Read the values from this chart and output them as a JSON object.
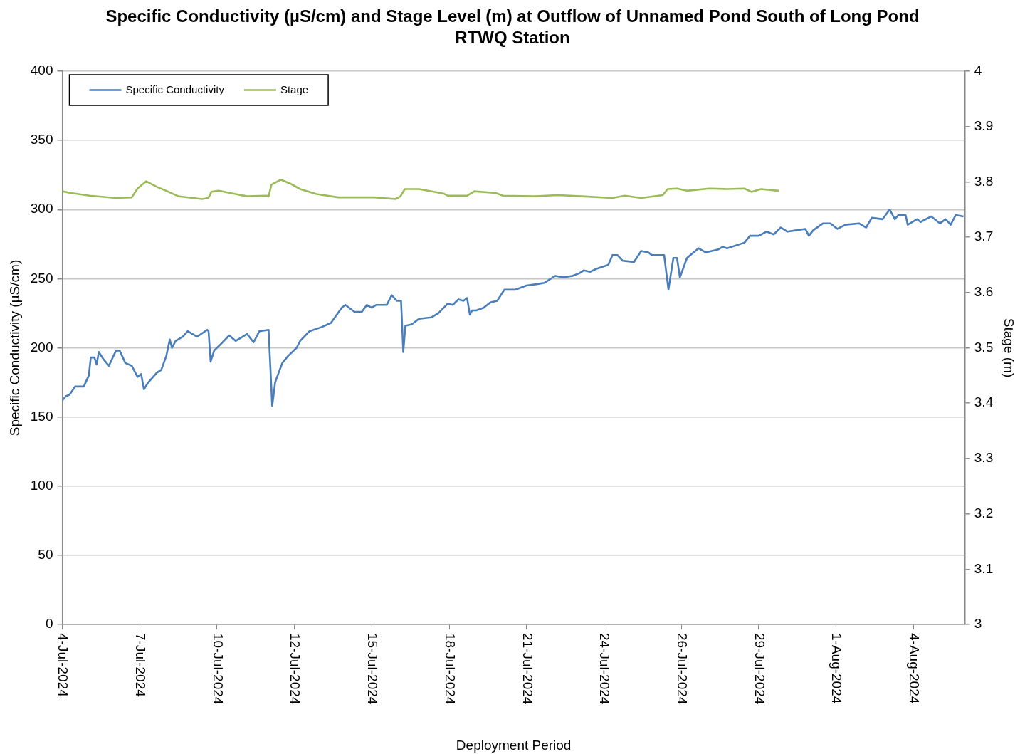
{
  "chart_data": {
    "type": "line",
    "title": "Specific Conductivity (µS/cm) and Stage Level (m) at Outflow of Unnamed Pond South of Long Pond RTWQ Station",
    "xlabel": "Deployment Period",
    "ylabel": "Specific Conductivity (µS/cm)",
    "y2label": "Stage (m)",
    "xlim": [
      "2024-07-04T16:30",
      "2024-08-05T21:18"
    ],
    "xticks": [
      {
        "value": "2024-07-04T16:30",
        "label": "4-Jul-2024"
      },
      {
        "value": "2024-07-07T10:44",
        "label": "7-Jul-2024"
      },
      {
        "value": "2024-07-10T04:59",
        "label": "10-Jul-2024"
      },
      {
        "value": "2024-07-12T23:13",
        "label": "12-Jul-2024"
      },
      {
        "value": "2024-07-15T17:28",
        "label": "15-Jul-2024"
      },
      {
        "value": "2024-07-18T11:42",
        "label": "18-Jul-2024"
      },
      {
        "value": "2024-07-21T05:56",
        "label": "21-Jul-2024"
      },
      {
        "value": "2024-07-24T00:11",
        "label": "24-Jul-2024"
      },
      {
        "value": "2024-07-26T18:25",
        "label": "26-Jul-2024"
      },
      {
        "value": "2024-07-29T12:40",
        "label": "29-Jul-2024"
      },
      {
        "value": "2024-08-01T06:54",
        "label": "1-Aug-2024"
      },
      {
        "value": "2024-08-04T01:08",
        "label": "4-Aug-2024"
      }
    ],
    "ylim": [
      0,
      400
    ],
    "yticks": [
      0,
      50,
      100,
      150,
      200,
      250,
      300,
      350,
      400
    ],
    "y2lim": [
      3,
      4
    ],
    "y2ticks": [
      3,
      3.1,
      3.2,
      3.3,
      3.4,
      3.5,
      3.6,
      3.7,
      3.8,
      3.9,
      4
    ],
    "grid": "y",
    "legend": "top left",
    "marker": "none",
    "line_style": "solid",
    "series": [
      {
        "name": "Specific Conductivity",
        "color": "#4a7ebb",
        "x": [
          "2024-07-04T16:30",
          "2024-07-04T19:36",
          "2024-07-04T22:36",
          "2024-07-05T03:30",
          "2024-07-05T10:54",
          "2024-07-05T15:12",
          "2024-07-05T16:54",
          "2024-07-05T20:00",
          "2024-07-05T21:54",
          "2024-07-05T23:48",
          "2024-07-06T03:30",
          "2024-07-06T08:24",
          "2024-07-06T14:30",
          "2024-07-06T17:36",
          "2024-07-06T22:30",
          "2024-07-07T04:00",
          "2024-07-07T08:54",
          "2024-07-07T12:00",
          "2024-07-07T14:24",
          "2024-07-07T18:06",
          "2024-07-08T01:30",
          "2024-07-08T05:12",
          "2024-07-08T09:30",
          "2024-07-08T12:30",
          "2024-07-08T14:24",
          "2024-07-08T17:30",
          "2024-07-08T23:36",
          "2024-07-09T03:54",
          "2024-07-09T11:54",
          "2024-07-09T20:30",
          "2024-07-09T21:42",
          "2024-07-09T23:30",
          "2024-07-10T02:30",
          "2024-07-10T08:36",
          "2024-07-10T15:24",
          "2024-07-10T20:54",
          "2024-07-11T06:42",
          "2024-07-11T12:18",
          "2024-07-11T17:12",
          "2024-07-12T01:06",
          "2024-07-12T04:12",
          "2024-07-12T06:42",
          "2024-07-12T12:48",
          "2024-07-12T17:42",
          "2024-07-13T01:06",
          "2024-07-13T04:06",
          "2024-07-13T12:06",
          "2024-07-13T22:30",
          "2024-07-14T06:30",
          "2024-07-14T15:42",
          "2024-07-14T18:48",
          "2024-07-15T02:42",
          "2024-07-15T08:54",
          "2024-07-15T13:12",
          "2024-07-15T17:24",
          "2024-07-15T21:06",
          "2024-07-16T06:12",
          "2024-07-16T10:30",
          "2024-07-16T14:48",
          "2024-07-16T18:30",
          "2024-07-16T20:24",
          "2024-07-16T22:12",
          "2024-07-17T03:42",
          "2024-07-17T09:48",
          "2024-07-17T20:18",
          "2024-07-18T02:24",
          "2024-07-18T10:30",
          "2024-07-18T14:42",
          "2024-07-18T19:36",
          "2024-07-18T23:54",
          "2024-07-19T03:00",
          "2024-07-19T05:24",
          "2024-07-19T07:18",
          "2024-07-19T10:54",
          "2024-07-19T17:06",
          "2024-07-19T23:18",
          "2024-07-20T04:48",
          "2024-07-20T10:54",
          "2024-07-20T20:06",
          "2024-07-21T05:54",
          "2024-07-21T14:30",
          "2024-07-21T21:18",
          "2024-07-22T06:24",
          "2024-07-22T13:48",
          "2024-07-22T21:12",
          "2024-07-23T03:18",
          "2024-07-23T07:00",
          "2024-07-23T12:30",
          "2024-07-23T17:24",
          "2024-07-24T03:54",
          "2024-07-24T07:30",
          "2024-07-24T11:48",
          "2024-07-24T16:06",
          "2024-07-25T01:54",
          "2024-07-25T08:06",
          "2024-07-25T14:12",
          "2024-07-25T17:18",
          "2024-07-26T03:42",
          "2024-07-26T07:24",
          "2024-07-26T11:36",
          "2024-07-26T14:42",
          "2024-07-26T17:12",
          "2024-07-26T23:18",
          "2024-07-27T09:06",
          "2024-07-27T15:12",
          "2024-07-28T01:42",
          "2024-07-28T05:54",
          "2024-07-28T09:36",
          "2024-07-29T00:24",
          "2024-07-29T05:12",
          "2024-07-29T12:36",
          "2024-07-29T19:24",
          "2024-07-30T01:30",
          "2024-07-30T07:36",
          "2024-07-30T13:12",
          "2024-07-30T21:06",
          "2024-07-31T04:30",
          "2024-07-31T07:36",
          "2024-07-31T11:18",
          "2024-07-31T19:48",
          "2024-08-01T02:00",
          "2024-08-01T08:06",
          "2024-08-01T14:54",
          "2024-08-02T02:30",
          "2024-08-02T08:36",
          "2024-08-02T13:30",
          "2024-08-02T22:42",
          "2024-08-03T04:48",
          "2024-08-03T09:12",
          "2024-08-03T12:12",
          "2024-08-03T18:24",
          "2024-08-03T20:12",
          "2024-08-04T04:12",
          "2024-08-04T07:12",
          "2024-08-04T16:24",
          "2024-08-04T23:48",
          "2024-08-05T04:42",
          "2024-08-05T09:00",
          "2024-08-05T13:18",
          "2024-08-05T20:00"
        ],
        "values": [
          162,
          165,
          166,
          172,
          172,
          180,
          193,
          193,
          188,
          197,
          192,
          187,
          198,
          198,
          189,
          187,
          179,
          181,
          170,
          175,
          182,
          184,
          194,
          206,
          200,
          205,
          208,
          212,
          208,
          213,
          212,
          190,
          198,
          203,
          209,
          205,
          210,
          204,
          212,
          213,
          158,
          175,
          189,
          194,
          200,
          205,
          212,
          215,
          218,
          229,
          231,
          226,
          226,
          231,
          229,
          231,
          231,
          238,
          234,
          234,
          197,
          216,
          217,
          221,
          222,
          225,
          232,
          231,
          235,
          234,
          236,
          224,
          227,
          227,
          229,
          233,
          234,
          242,
          242,
          245,
          246,
          247,
          252,
          251,
          252,
          254,
          256,
          255,
          257,
          260,
          267,
          267,
          263,
          262,
          270,
          269,
          267,
          267,
          242,
          265,
          265,
          251,
          265,
          272,
          269,
          271,
          273,
          272,
          276,
          281,
          281,
          284,
          282,
          287,
          284,
          285,
          286,
          281,
          285,
          290,
          290,
          286,
          289,
          290,
          287,
          294,
          293,
          300,
          293,
          296,
          296,
          289,
          293,
          291,
          295,
          290,
          293,
          289,
          296,
          295
        ]
      },
      {
        "name": "Stage",
        "color": "#9bbb59",
        "axis": "y2",
        "x": [
          "2024-07-04T16:30",
          "2024-07-04T23:54",
          "2024-07-05T15:48",
          "2024-07-06T14:30",
          "2024-07-07T04:00",
          "2024-07-07T08:54",
          "2024-07-07T16:18",
          "2024-07-08T01:30",
          "2024-07-08T09:24",
          "2024-07-08T19:54",
          "2024-07-09T16:06",
          "2024-07-09T21:36",
          "2024-07-10T00:06",
          "2024-07-10T06:12",
          "2024-07-10T20:54",
          "2024-07-11T06:42",
          "2024-07-11T23:18",
          "2024-07-12T01:06",
          "2024-07-12T03:36",
          "2024-07-12T11:30",
          "2024-07-12T19:30",
          "2024-07-13T04:06",
          "2024-07-13T18:12",
          "2024-07-14T12:36",
          "2024-07-15T19:18",
          "2024-07-16T13:42",
          "2024-07-16T18:00",
          "2024-07-16T21:42",
          "2024-07-17T09:54",
          "2024-07-18T06:48",
          "2024-07-18T10:30",
          "2024-07-19T03:00",
          "2024-07-19T09:12",
          "2024-07-20T03:36",
          "2024-07-20T09:42",
          "2024-07-21T12:06",
          "2024-07-22T08:54",
          "2024-07-23T05:06",
          "2024-07-24T07:30",
          "2024-07-24T17:54",
          "2024-07-25T08:06",
          "2024-07-26T02:24",
          "2024-07-26T06:42",
          "2024-07-26T14:42",
          "2024-07-26T23:18",
          "2024-07-27T18:18",
          "2024-07-28T09:36",
          "2024-07-29T00:24",
          "2024-07-29T06:30",
          "2024-07-29T14:30",
          "2024-07-30T05:48"
        ],
        "values": [
          3.783,
          3.78,
          3.775,
          3.771,
          3.772,
          3.788,
          3.801,
          3.791,
          3.784,
          3.774,
          3.769,
          3.771,
          3.782,
          3.784,
          3.778,
          3.774,
          3.775,
          3.774,
          3.795,
          3.804,
          3.797,
          3.787,
          3.778,
          3.772,
          3.772,
          3.769,
          3.774,
          3.787,
          3.787,
          3.779,
          3.775,
          3.775,
          3.783,
          3.78,
          3.775,
          3.774,
          3.776,
          3.774,
          3.771,
          3.775,
          3.771,
          3.776,
          3.787,
          3.788,
          3.784,
          3.788,
          3.787,
          3.788,
          3.782,
          3.787,
          3.784
        ]
      }
    ]
  }
}
